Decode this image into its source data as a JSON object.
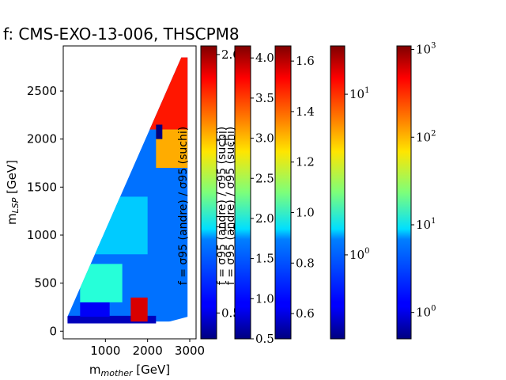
{
  "title": "f: CMS-EXO-13-006, THSCPM8",
  "chart_data": {
    "type": "heatmap",
    "title": "f: CMS-EXO-13-006, THSCPM8",
    "xlabel": "m_mother [GeV]",
    "ylabel": "m_LSP [GeV]",
    "xlim": [
      0,
      3150
    ],
    "ylim": [
      -80,
      2970
    ],
    "x_ticks": [
      "1000",
      "2000",
      "3000"
    ],
    "y_ticks": [
      "0",
      "500",
      "1000",
      "1500",
      "2000",
      "2500"
    ],
    "x_tick_values": [
      1000,
      2000,
      3000
    ],
    "y_tick_values": [
      0,
      500,
      1000,
      1500,
      2000,
      2500
    ],
    "colormap": "jet",
    "grid": false,
    "region": {
      "description_points": [
        [
          100,
          80
        ],
        [
          100,
          150
        ],
        [
          2800,
          2850
        ],
        [
          2950,
          2850
        ],
        [
          2950,
          150
        ],
        [
          2350,
          80
        ]
      ],
      "colorbar_ref": 0
    },
    "cells": [
      {
        "x": [
          100,
          2950
        ],
        "y": [
          100,
          2850
        ],
        "f": 0.75
      },
      {
        "x": [
          100,
          2200
        ],
        "y": [
          80,
          160
        ],
        "f": 0.45
      },
      {
        "x": [
          400,
          1100
        ],
        "y": [
          150,
          300
        ],
        "f": 0.55
      },
      {
        "x": [
          1600,
          2000
        ],
        "y": [
          100,
          350
        ],
        "f": 1.9
      },
      {
        "x": [
          2000,
          2950
        ],
        "y": [
          2100,
          2850
        ],
        "f": 1.8
      },
      {
        "x": [
          2200,
          2950
        ],
        "y": [
          1700,
          2100
        ],
        "f": 1.55
      },
      {
        "x": [
          2200,
          2350
        ],
        "y": [
          2000,
          2150
        ],
        "f": 0.3
      },
      {
        "x": [
          600,
          2000
        ],
        "y": [
          800,
          1400
        ],
        "f": 0.9
      },
      {
        "x": [
          400,
          1400
        ],
        "y": [
          300,
          700
        ],
        "f": 1.05
      }
    ],
    "colorbars": [
      {
        "label": "f = σ95 (andre) / σ95 (suchi)",
        "scale": "linear",
        "range": [
          0.35,
          2.05
        ],
        "ticks": [
          "0.5",
          "1.0",
          "1.5",
          "2.0"
        ],
        "tick_values": [
          0.5,
          1.0,
          1.5,
          2.0
        ]
      },
      {
        "label": "f = σ95 (andre) / σ95 (suchi)",
        "scale": "linear",
        "range": [
          0.5,
          4.15
        ],
        "ticks": [
          "0.5",
          "1.0",
          "1.5",
          "2.0",
          "2.5",
          "3.0",
          "3.5",
          "4.0"
        ],
        "tick_values": [
          0.5,
          1.0,
          1.5,
          2.0,
          2.5,
          3.0,
          3.5,
          4.0
        ]
      },
      {
        "label": "f = σ95 (andre) / σ95 (suchi)",
        "scale": "linear",
        "range": [
          0.5,
          1.66
        ],
        "ticks": [
          "0.6",
          "0.8",
          "1.0",
          "1.2",
          "1.4",
          "1.6"
        ],
        "tick_values": [
          0.6,
          0.8,
          1.0,
          1.2,
          1.4,
          1.6
        ]
      },
      {
        "label": "",
        "scale": "log",
        "range": [
          0.3,
          20
        ],
        "ticks": [
          "10^0",
          "10^1"
        ],
        "tick_values": [
          1,
          10
        ]
      },
      {
        "label": "",
        "scale": "log",
        "range": [
          0.5,
          1100
        ],
        "ticks": [
          "10^0",
          "10^1",
          "10^2",
          "10^3"
        ],
        "tick_values": [
          1,
          10,
          100,
          1000
        ]
      }
    ]
  }
}
